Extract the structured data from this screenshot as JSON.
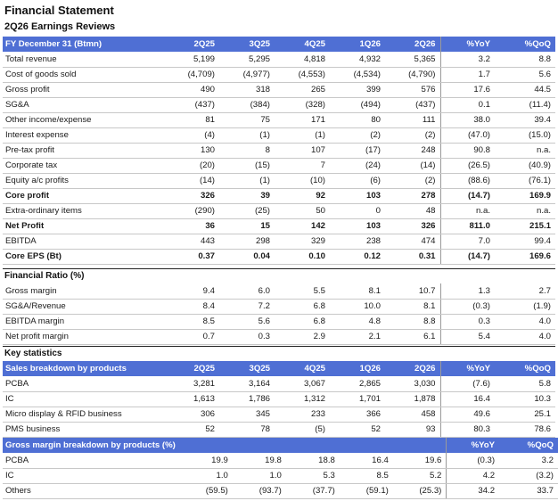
{
  "title": "Financial Statement",
  "subtitle": "2Q26 Earnings Reviews",
  "income": {
    "header": [
      "FY December 31 (Btmn)",
      "2Q25",
      "3Q25",
      "4Q25",
      "1Q26",
      "2Q26",
      "%YoY",
      "%QoQ"
    ],
    "rows": [
      {
        "cells": [
          "Total revenue",
          "5,199",
          "5,295",
          "4,818",
          "4,932",
          "5,365",
          "3.2",
          "8.8"
        ],
        "bold": false
      },
      {
        "cells": [
          "Cost of goods sold",
          "(4,709)",
          "(4,977)",
          "(4,553)",
          "(4,534)",
          "(4,790)",
          "1.7",
          "5.6"
        ],
        "bold": false
      },
      {
        "cells": [
          "Gross profit",
          "490",
          "318",
          "265",
          "399",
          "576",
          "17.6",
          "44.5"
        ],
        "bold": false
      },
      {
        "cells": [
          "SG&A",
          "(437)",
          "(384)",
          "(328)",
          "(494)",
          "(437)",
          "0.1",
          "(11.4)"
        ],
        "bold": false
      },
      {
        "cells": [
          "Other income/expense",
          "81",
          "75",
          "171",
          "80",
          "111",
          "38.0",
          "39.4"
        ],
        "bold": false
      },
      {
        "cells": [
          "Interest expense",
          "(4)",
          "(1)",
          "(1)",
          "(2)",
          "(2)",
          "(47.0)",
          "(15.0)"
        ],
        "bold": false
      },
      {
        "cells": [
          "Pre-tax profit",
          "130",
          "8",
          "107",
          "(17)",
          "248",
          "90.8",
          "n.a."
        ],
        "bold": false
      },
      {
        "cells": [
          "Corporate tax",
          "(20)",
          "(15)",
          "7",
          "(24)",
          "(14)",
          "(26.5)",
          "(40.9)"
        ],
        "bold": false
      },
      {
        "cells": [
          "Equity a/c profits",
          "(14)",
          "(1)",
          "(10)",
          "(6)",
          "(2)",
          "(88.6)",
          "(76.1)"
        ],
        "bold": false
      },
      {
        "cells": [
          "Core profit",
          "326",
          "39",
          "92",
          "103",
          "278",
          "(14.7)",
          "169.9"
        ],
        "bold": true
      },
      {
        "cells": [
          "Extra-ordinary items",
          "(290)",
          "(25)",
          "50",
          "0",
          "48",
          "n.a.",
          "n.a."
        ],
        "bold": false
      },
      {
        "cells": [
          "Net Profit",
          "36",
          "15",
          "142",
          "103",
          "326",
          "811.0",
          "215.1"
        ],
        "bold": true
      },
      {
        "cells": [
          "EBITDA",
          "443",
          "298",
          "329",
          "238",
          "474",
          "7.0",
          "99.4"
        ],
        "bold": false
      },
      {
        "cells": [
          "Core EPS (Bt)",
          "0.37",
          "0.04",
          "0.10",
          "0.12",
          "0.31",
          "(14.7)",
          "169.6"
        ],
        "bold": true
      }
    ]
  },
  "ratio": {
    "title": "Financial Ratio (%)",
    "rows": [
      {
        "cells": [
          "Gross margin",
          "9.4",
          "6.0",
          "5.5",
          "8.1",
          "10.7",
          "1.3",
          "2.7"
        ],
        "bold": false
      },
      {
        "cells": [
          "SG&A/Revenue",
          "8.4",
          "7.2",
          "6.8",
          "10.0",
          "8.1",
          "(0.3)",
          "(1.9)"
        ],
        "bold": false
      },
      {
        "cells": [
          "EBITDA margin",
          "8.5",
          "5.6",
          "6.8",
          "4.8",
          "8.8",
          "0.3",
          "4.0"
        ],
        "bold": false
      },
      {
        "cells": [
          "Net profit margin",
          "0.7",
          "0.3",
          "2.9",
          "2.1",
          "6.1",
          "5.4",
          "4.0"
        ],
        "bold": false
      }
    ]
  },
  "key": {
    "title": "Key statistics",
    "sales_header": [
      "Sales breakdown by products",
      "2Q25",
      "3Q25",
      "4Q25",
      "1Q26",
      "2Q26",
      "%YoY",
      "%QoQ"
    ],
    "sales_rows": [
      {
        "cells": [
          "PCBA",
          "3,281",
          "3,164",
          "3,067",
          "2,865",
          "3,030",
          "(7.6)",
          "5.8"
        ],
        "bold": false
      },
      {
        "cells": [
          "IC",
          "1,613",
          "1,786",
          "1,312",
          "1,701",
          "1,878",
          "16.4",
          "10.3"
        ],
        "bold": false
      },
      {
        "cells": [
          "Micro display & RFID business",
          "306",
          "345",
          "233",
          "366",
          "458",
          "49.6",
          "25.1"
        ],
        "bold": false
      },
      {
        "cells": [
          "PMS business",
          "52",
          "78",
          "(5)",
          "52",
          "93",
          "80.3",
          "78.6"
        ],
        "bold": false
      }
    ],
    "gm_header": [
      "Gross margin breakdown by products (%)",
      "",
      "",
      "",
      "",
      "",
      "%YoY",
      "%QoQ"
    ],
    "gm_rows": [
      {
        "cells": [
          "PCBA",
          "19.9",
          "19.8",
          "18.8",
          "16.4",
          "19.6",
          "(0.3)",
          "3.2"
        ],
        "bold": false
      },
      {
        "cells": [
          "IC",
          "1.0",
          "1.0",
          "5.3",
          "8.5",
          "5.2",
          "4.2",
          "(3.2)"
        ],
        "bold": false
      },
      {
        "cells": [
          "Others",
          "(59.5)",
          "(93.7)",
          "(37.7)",
          "(59.1)",
          "(25.3)",
          "34.2",
          "33.7"
        ],
        "bold": false
      }
    ]
  },
  "colors": {
    "header_bg": "#4f6fd4",
    "header_text": "#ffffff"
  }
}
